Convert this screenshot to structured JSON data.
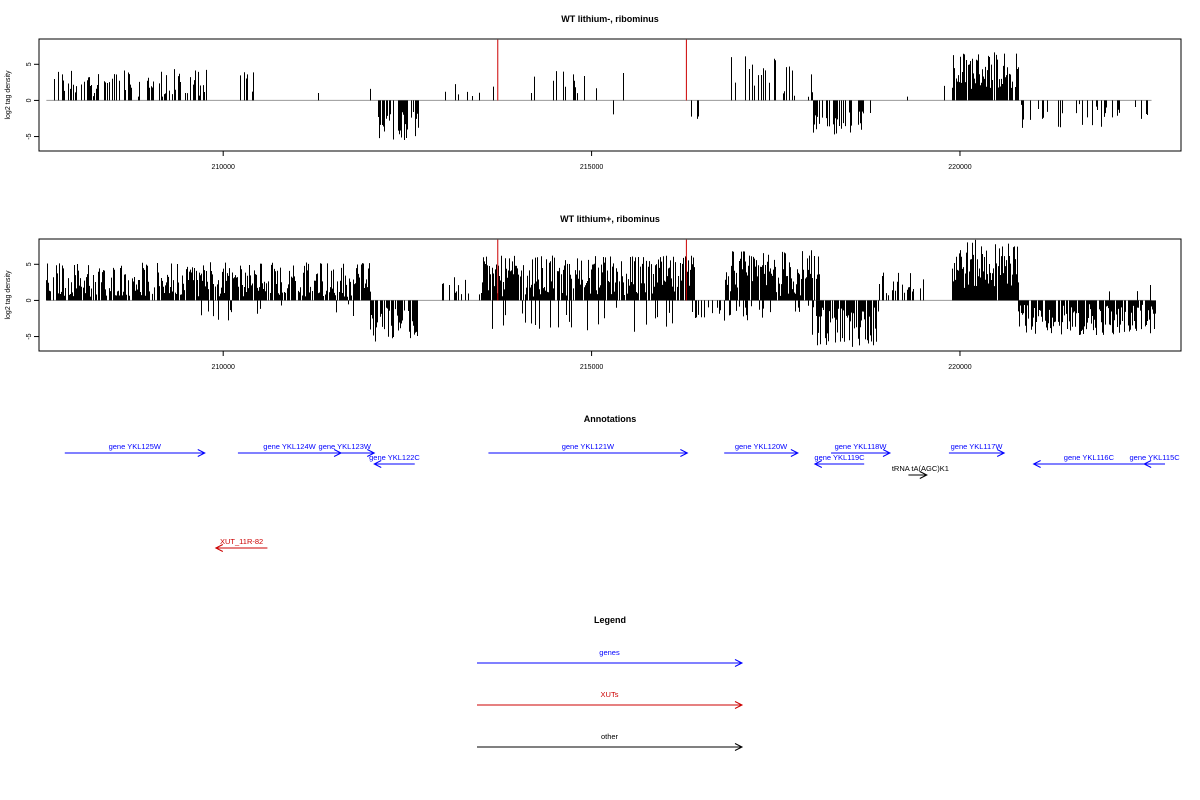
{
  "chart_data": [
    {
      "type": "bar",
      "title": "WT lithium-, ribominus",
      "ylabel": "log2 tag density",
      "xlim": [
        207500,
        223000
      ],
      "ylim": [
        -7,
        8.5
      ],
      "xticks": [
        "210000",
        "215000",
        "220000"
      ],
      "yticks": [
        "5",
        "0",
        "-5"
      ],
      "highlight_positions": [
        213720,
        216280
      ],
      "highlight_color": "#cc0000",
      "data_color": "#000000",
      "segments": [
        {
          "start": 207700,
          "end": 209800,
          "min": 0.5,
          "max": 4.4,
          "sign": 1,
          "density": 0.45
        },
        {
          "start": 210180,
          "end": 210430,
          "min": 0.8,
          "max": 4.2,
          "sign": 1,
          "density": 0.35
        },
        {
          "start": 211000,
          "end": 211400,
          "min": 0.5,
          "max": 2.6,
          "sign": 1,
          "density": 0.05
        },
        {
          "start": 211900,
          "end": 212000,
          "min": 0.5,
          "max": 1.6,
          "sign": 1,
          "density": 0.1
        },
        {
          "start": 212080,
          "end": 212650,
          "min": 1.5,
          "max": 5.5,
          "sign": -1,
          "density": 0.7
        },
        {
          "start": 213000,
          "end": 213700,
          "min": 0.5,
          "max": 3.0,
          "sign": 1,
          "density": 0.08
        },
        {
          "start": 213800,
          "end": 215500,
          "min": 0.5,
          "max": 4.2,
          "sign": 1,
          "density": 0.1
        },
        {
          "start": 215000,
          "end": 215350,
          "min": 1.0,
          "max": 4.0,
          "sign": -1,
          "density": 0.05
        },
        {
          "start": 216350,
          "end": 216450,
          "min": 1.5,
          "max": 2.6,
          "sign": -1,
          "density": 0.2
        },
        {
          "start": 216850,
          "end": 218000,
          "min": 0.5,
          "max": 6.2,
          "sign": 1,
          "density": 0.35
        },
        {
          "start": 218000,
          "end": 218800,
          "min": 1.5,
          "max": 5.0,
          "sign": -1,
          "density": 0.4
        },
        {
          "start": 219200,
          "end": 219400,
          "min": 0.5,
          "max": 1.6,
          "sign": 1,
          "density": 0.1
        },
        {
          "start": 219750,
          "end": 219800,
          "min": 1.5,
          "max": 5.0,
          "sign": 1,
          "density": 0.3
        },
        {
          "start": 219900,
          "end": 220800,
          "min": 1.5,
          "max": 6.8,
          "sign": 1,
          "density": 0.95
        },
        {
          "start": 220800,
          "end": 222600,
          "min": 0.5,
          "max": 3.9,
          "sign": -1,
          "density": 0.25
        }
      ]
    },
    {
      "type": "bar",
      "title": "WT lithium+, ribominus",
      "ylabel": "log2 tag density",
      "xlim": [
        207500,
        223000
      ],
      "ylim": [
        -7,
        8.5
      ],
      "xticks": [
        "210000",
        "215000",
        "220000"
      ],
      "yticks": [
        "5",
        "0",
        "-5"
      ],
      "highlight_positions": [
        213720,
        216280
      ],
      "highlight_color": "#cc0000",
      "data_color": "#000000",
      "segments": [
        {
          "start": 207600,
          "end": 212000,
          "min": 0.5,
          "max": 5.3,
          "sign": 1,
          "density": 0.85
        },
        {
          "start": 209600,
          "end": 212000,
          "min": 0.5,
          "max": 2.8,
          "sign": -1,
          "density": 0.05
        },
        {
          "start": 212000,
          "end": 212650,
          "min": 0.8,
          "max": 5.8,
          "sign": -1,
          "density": 0.75
        },
        {
          "start": 212900,
          "end": 213500,
          "min": 0.5,
          "max": 3.5,
          "sign": 1,
          "density": 0.15
        },
        {
          "start": 213500,
          "end": 216400,
          "min": 0.5,
          "max": 6.2,
          "sign": 1,
          "density": 0.9
        },
        {
          "start": 213500,
          "end": 216400,
          "min": 0.5,
          "max": 4.5,
          "sign": -1,
          "density": 0.12
        },
        {
          "start": 216400,
          "end": 216800,
          "min": 0.5,
          "max": 2.5,
          "sign": -1,
          "density": 0.2
        },
        {
          "start": 216800,
          "end": 218100,
          "min": 0.5,
          "max": 7.0,
          "sign": 1,
          "density": 0.9
        },
        {
          "start": 216800,
          "end": 218000,
          "min": 0.5,
          "max": 2.8,
          "sign": -1,
          "density": 0.25
        },
        {
          "start": 218000,
          "end": 218900,
          "min": 0.8,
          "max": 6.5,
          "sign": -1,
          "density": 0.85
        },
        {
          "start": 218900,
          "end": 219500,
          "min": 0.5,
          "max": 4.0,
          "sign": 1,
          "density": 0.35
        },
        {
          "start": 219900,
          "end": 220800,
          "min": 1.5,
          "max": 8.4,
          "sign": 1,
          "density": 0.98
        },
        {
          "start": 220800,
          "end": 222650,
          "min": 0.5,
          "max": 4.8,
          "sign": -1,
          "density": 0.85
        },
        {
          "start": 221800,
          "end": 222600,
          "min": 0.5,
          "max": 3.0,
          "sign": 1,
          "density": 0.05
        }
      ]
    }
  ],
  "annotations": {
    "title": "Annotations",
    "items": [
      {
        "label": "gene YKL125W",
        "start": 207850,
        "end": 209750,
        "row": 0,
        "dir": "right",
        "color": "#0000ff"
      },
      {
        "label": "gene YKL124W",
        "start": 210200,
        "end": 211600,
        "row": 0,
        "dir": "right",
        "color": "#0000ff"
      },
      {
        "label": "gene YKL123W",
        "start": 211250,
        "end": 212050,
        "row": 0,
        "dir": "right",
        "color": "#0000ff"
      },
      {
        "label": "gene YKL122C",
        "start": 212050,
        "end": 212600,
        "row": 1,
        "dir": "left",
        "color": "#0000ff"
      },
      {
        "label": "gene YKL121W",
        "start": 213600,
        "end": 216300,
        "row": 0,
        "dir": "right",
        "color": "#0000ff"
      },
      {
        "label": "gene YKL120W",
        "start": 216800,
        "end": 217800,
        "row": 0,
        "dir": "right",
        "color": "#0000ff"
      },
      {
        "label": "gene YKL118W",
        "start": 218250,
        "end": 219050,
        "row": 0,
        "dir": "right",
        "color": "#0000ff"
      },
      {
        "label": "gene YKL119C",
        "start": 218030,
        "end": 218700,
        "row": 1,
        "dir": "left",
        "color": "#0000ff"
      },
      {
        "label": "gene YKL117W",
        "start": 219850,
        "end": 220600,
        "row": 0,
        "dir": "right",
        "color": "#0000ff"
      },
      {
        "label": "tRNA tA(AGC)K1",
        "start": 219300,
        "end": 219550,
        "row": 2,
        "dir": "right",
        "color": "#000000"
      },
      {
        "label": "gene YKL116C",
        "start": 221000,
        "end": 222500,
        "row": 1,
        "dir": "left",
        "color": "#0000ff"
      },
      {
        "label": "gene YKL115C",
        "start": 222500,
        "end": 223100,
        "row": 1,
        "dir": "left",
        "color": "#0000ff"
      },
      {
        "label": "XUT_11R-82",
        "start": 209900,
        "end": 210600,
        "row": 3,
        "dir": "left",
        "color": "#cc0000"
      }
    ]
  },
  "legend": {
    "title": "Legend",
    "items": [
      {
        "label": "genes",
        "color": "#0000ff"
      },
      {
        "label": "XUTs",
        "color": "#cc0000"
      },
      {
        "label": "other",
        "color": "#000000"
      }
    ]
  }
}
